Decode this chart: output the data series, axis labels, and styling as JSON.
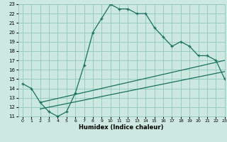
{
  "xlabel": "Humidex (Indice chaleur)",
  "bg_color": "#cce8e0",
  "grid_color": "#8fc8bc",
  "line_color": "#1a7060",
  "xlim": [
    -0.5,
    23
  ],
  "ylim": [
    11,
    23
  ],
  "x_ticks": [
    0,
    1,
    2,
    3,
    4,
    5,
    6,
    7,
    8,
    9,
    10,
    11,
    12,
    13,
    14,
    15,
    16,
    17,
    18,
    19,
    20,
    21,
    22,
    23
  ],
  "y_ticks": [
    11,
    12,
    13,
    14,
    15,
    16,
    17,
    18,
    19,
    20,
    21,
    22,
    23
  ],
  "main_x": [
    0,
    1,
    2,
    3,
    4,
    5,
    6,
    7,
    8,
    9,
    10,
    11,
    12,
    13,
    14,
    15,
    16,
    17,
    18,
    19,
    20,
    21,
    22,
    23
  ],
  "main_y": [
    14.5,
    14.0,
    12.5,
    11.5,
    11.0,
    11.5,
    13.5,
    16.5,
    20.0,
    21.5,
    23.0,
    22.5,
    22.5,
    22.0,
    22.0,
    20.5,
    19.5,
    18.5,
    19.0,
    18.5,
    17.5,
    17.5,
    17.0,
    15.0
  ],
  "line2_x": [
    2,
    23
  ],
  "line2_y": [
    12.5,
    17.0
  ],
  "line3_x": [
    2,
    23
  ],
  "line3_y": [
    11.8,
    15.8
  ]
}
